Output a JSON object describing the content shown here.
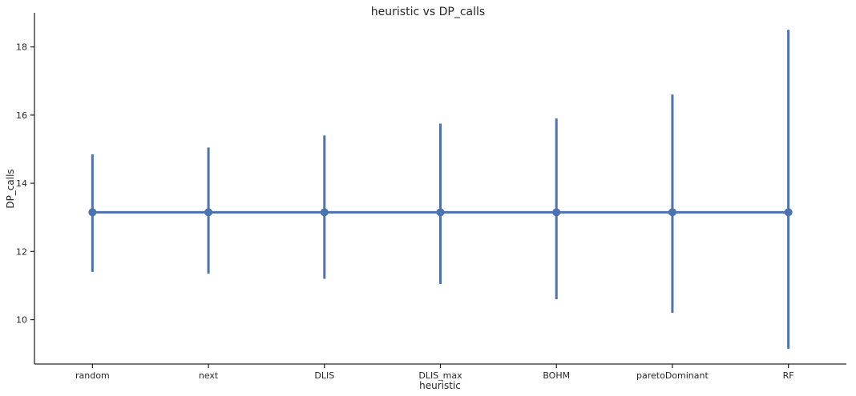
{
  "chart_data": {
    "type": "line",
    "title": "heuristic vs DP_calls",
    "xlabel": "heuristic",
    "ylabel": "DP_calls",
    "categories": [
      "random",
      "next",
      "DLIS",
      "DLIS_max",
      "BOHM",
      "paretoDominant",
      "RF"
    ],
    "series": [
      {
        "values": [
          13.15,
          13.15,
          13.15,
          13.15,
          13.15,
          13.15,
          13.15
        ],
        "ci_low": [
          11.4,
          11.35,
          11.2,
          11.05,
          10.6,
          10.2,
          9.15
        ],
        "ci_high": [
          14.85,
          15.05,
          15.4,
          15.75,
          15.9,
          16.6,
          18.5
        ]
      }
    ],
    "ylim": [
      8.7,
      19.0
    ],
    "yticks": [
      10,
      12,
      14,
      16,
      18
    ],
    "grid": false,
    "color": "#4c72b0"
  }
}
